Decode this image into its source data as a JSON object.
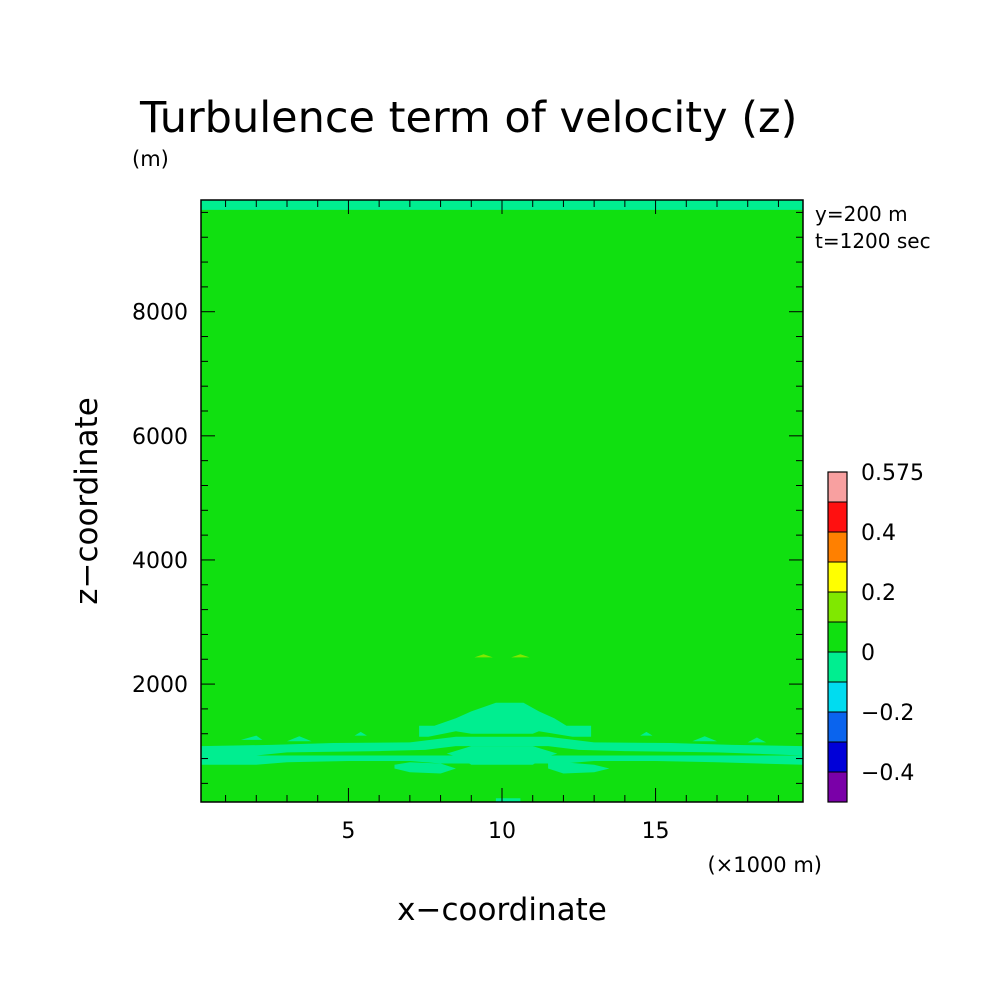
{
  "chart_data": {
    "type": "heatmap",
    "title": "Turbulence term of velocity (z)",
    "y_unit_label": "(m)",
    "xlabel": "x−coordinate",
    "ylabel": "z−coordinate",
    "x_unit_label": "(×1000 m)",
    "annotations": [
      "y=200 m",
      "t=1200 sec"
    ],
    "xlim": [
      0.2,
      19.8
    ],
    "ylim": [
      100,
      9800
    ],
    "x_ticks": [
      5,
      10,
      15
    ],
    "x_tick_labels": [
      "5",
      "10",
      "15"
    ],
    "x_minor_step": 1,
    "y_ticks": [
      2000,
      4000,
      6000,
      8000
    ],
    "y_tick_labels": [
      "2000",
      "4000",
      "6000",
      "8000"
    ],
    "y_minor_step": 400,
    "background_level": "0_to_0.1",
    "colorbar": {
      "levels": [
        {
          "key": "-0.5_to_-0.4",
          "color": "#7a00a8"
        },
        {
          "key": "-0.4_to_-0.3",
          "color": "#0000d8"
        },
        {
          "key": "-0.3_to_-0.2",
          "color": "#0a64ee"
        },
        {
          "key": "-0.2_to_-0.1",
          "color": "#00dcf0"
        },
        {
          "key": "-0.1_to_0",
          "color": "#00ee90"
        },
        {
          "key": "0_to_0.1",
          "color": "#10e010"
        },
        {
          "key": "0.1_to_0.2",
          "color": "#80e800"
        },
        {
          "key": "0.2_to_0.3",
          "color": "#ffff00"
        },
        {
          "key": "0.3_to_0.4",
          "color": "#ff8000"
        },
        {
          "key": "0.4_to_0.5",
          "color": "#ff1010"
        },
        {
          "key": "0.5_to_0.575",
          "color": "#f8a0a0"
        }
      ],
      "tick_labels": [
        {
          "label": "−0.4",
          "boundary_index": 1
        },
        {
          "label": "−0.2",
          "boundary_index": 3
        },
        {
          "label": "0",
          "boundary_index": 5
        },
        {
          "label": "0.2",
          "boundary_index": 7
        },
        {
          "label": "0.4",
          "boundary_index": 9
        },
        {
          "label": "0.575",
          "boundary_index": 11
        }
      ]
    },
    "regions": [
      {
        "level": "-0.1_to_0",
        "x": [
          0.2,
          19.8,
          19.8,
          0.2
        ],
        "z": [
          9640,
          9640,
          9800,
          9800
        ]
      },
      {
        "level": "-0.1_to_0",
        "x": [
          0.2,
          2.0,
          3.0,
          5.0,
          7.0,
          8.0,
          12.0,
          13.0,
          15.0,
          17.0,
          19.8,
          19.8,
          0.2
        ],
        "z": [
          700,
          700,
          740,
          760,
          760,
          720,
          720,
          760,
          760,
          740,
          700,
          850,
          850
        ]
      },
      {
        "level": "-0.1_to_0",
        "x": [
          0.2,
          2.0,
          3.0,
          6.0,
          7.5,
          8.5,
          11.5,
          12.5,
          14.0,
          17.0,
          19.8,
          19.8,
          17.5,
          15.5,
          13.0,
          11.5,
          8.5,
          7.0,
          4.5,
          2.5,
          0.2
        ],
        "z": [
          850,
          850,
          900,
          920,
          940,
          1000,
          1000,
          940,
          920,
          900,
          850,
          1000,
          1020,
          1050,
          1060,
          1150,
          1150,
          1060,
          1050,
          1020,
          1000
        ]
      },
      {
        "level": "-0.1_to_0",
        "x": [
          7.3,
          7.3,
          7.8,
          8.5,
          9.0,
          9.8,
          10.7,
          11.2,
          11.7,
          12.1,
          12.9,
          12.9,
          12.3,
          11.2,
          11.0,
          9.0,
          8.5,
          7.6
        ],
        "z": [
          1150,
          1330,
          1330,
          1450,
          1560,
          1700,
          1700,
          1560,
          1450,
          1330,
          1330,
          1150,
          1150,
          1240,
          1200,
          1200,
          1240,
          1150
        ]
      },
      {
        "level": "-0.1_to_0",
        "x": [
          8.2,
          8.6,
          9.0,
          11.0,
          11.4,
          11.8,
          11.4,
          11.0,
          9.0,
          8.6
        ],
        "z": [
          880,
          820,
          700,
          700,
          820,
          880,
          940,
          1000,
          1000,
          940
        ]
      },
      {
        "level": "-0.1_to_0",
        "x": [
          6.5,
          7.0,
          8.0,
          8.5,
          8.0,
          7.0,
          6.5
        ],
        "z": [
          640,
          580,
          560,
          640,
          720,
          740,
          700
        ]
      },
      {
        "level": "-0.1_to_0",
        "x": [
          11.5,
          12.0,
          13.0,
          13.5,
          13.0,
          12.0,
          11.5
        ],
        "z": [
          640,
          560,
          580,
          640,
          700,
          740,
          720
        ]
      },
      {
        "level": "-0.1_to_0",
        "x": [
          1.5,
          2.2,
          2.0
        ],
        "z": [
          1100,
          1100,
          1170
        ]
      },
      {
        "level": "-0.1_to_0",
        "x": [
          3.0,
          3.8,
          3.4
        ],
        "z": [
          1080,
          1080,
          1160
        ]
      },
      {
        "level": "-0.1_to_0",
        "x": [
          5.2,
          5.6,
          5.4
        ],
        "z": [
          1170,
          1170,
          1230
        ]
      },
      {
        "level": "-0.1_to_0",
        "x": [
          14.5,
          14.9,
          14.7
        ],
        "z": [
          1170,
          1170,
          1230
        ]
      },
      {
        "level": "-0.1_to_0",
        "x": [
          16.2,
          17.0,
          16.6
        ],
        "z": [
          1080,
          1080,
          1160
        ]
      },
      {
        "level": "-0.1_to_0",
        "x": [
          18.0,
          18.6,
          18.3
        ],
        "z": [
          1060,
          1060,
          1140
        ]
      },
      {
        "level": "-0.1_to_0",
        "x": [
          9.8,
          10.6,
          10.6,
          9.8
        ],
        "z": [
          100,
          100,
          160,
          160
        ]
      },
      {
        "level": "0.1_to_0.2",
        "x": [
          9.1,
          9.7,
          9.4
        ],
        "z": [
          2430,
          2430,
          2480
        ]
      },
      {
        "level": "0.1_to_0.2",
        "x": [
          10.3,
          10.9,
          10.6
        ],
        "z": [
          2430,
          2430,
          2480
        ]
      }
    ]
  }
}
